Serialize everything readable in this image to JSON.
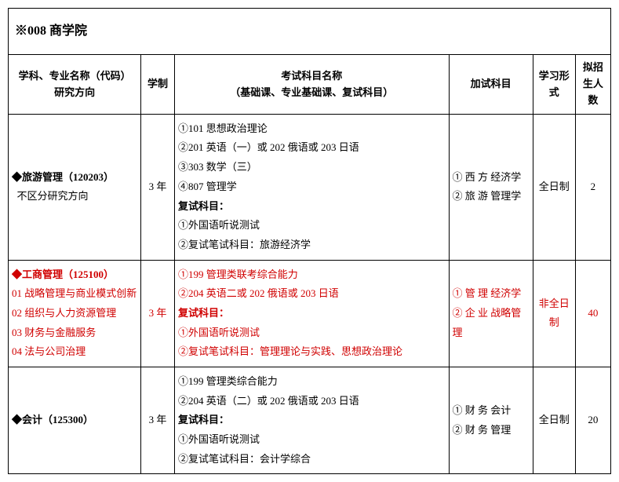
{
  "dept_header": "※008 商学院",
  "columns": {
    "c1": "学科、专业名称（代码）\n研究方向",
    "c2": "学制",
    "c3": "考试科目名称\n（基础课、专业基础课、复试科目）",
    "c4": "加试科目",
    "c5": "学习形式",
    "c6": "拟招生人数"
  },
  "rows": [
    {
      "red": false,
      "major_title": "◆旅游管理（120203）",
      "directions": [
        "不区分研究方向"
      ],
      "duration": "3 年",
      "subjects": [
        "①101 思想政治理论",
        "②201 英语（一）或 202 俄语或 203 日语",
        "③303 数学（三）",
        "④807 管理学"
      ],
      "fushi_heading": "复试科目：",
      "fushi": [
        "①外国语听说测试",
        "②复试笔试科目：旅游经济学"
      ],
      "extra": [
        "① 西 方 经济学",
        "② 旅 游 管理学"
      ],
      "study_mode": "全日制",
      "quota": "2"
    },
    {
      "red": true,
      "major_title": "◆工商管理（125100）",
      "directions": [
        "01 战略管理与商业模式创新",
        "02 组织与人力资源管理",
        "03 财务与金融服务",
        "04 法与公司治理"
      ],
      "duration": "3 年",
      "subjects": [
        "①199 管理类联考综合能力",
        "②204 英语二或 202 俄语或 203 日语"
      ],
      "fushi_heading": "复试科目：",
      "fushi": [
        "①外国语听说测试",
        "②复试笔试科目：管理理论与实践、思想政治理论"
      ],
      "extra": [
        "① 管 理 经济学",
        "② 企 业 战略管理"
      ],
      "study_mode": "非全日制",
      "quota": "40"
    },
    {
      "red": false,
      "major_title": "◆会计（125300）",
      "directions": [],
      "duration": "3 年",
      "subjects": [
        "①199 管理类综合能力",
        "②204 英语（二）或 202 俄语或 203 日语"
      ],
      "fushi_heading": "复试科目：",
      "fushi": [
        "①外国语听说测试",
        "②复试笔试科目：会计学综合"
      ],
      "extra": [
        "① 财 务 会计",
        "② 财 务 管理"
      ],
      "study_mode": "全日制",
      "quota": "20"
    }
  ]
}
